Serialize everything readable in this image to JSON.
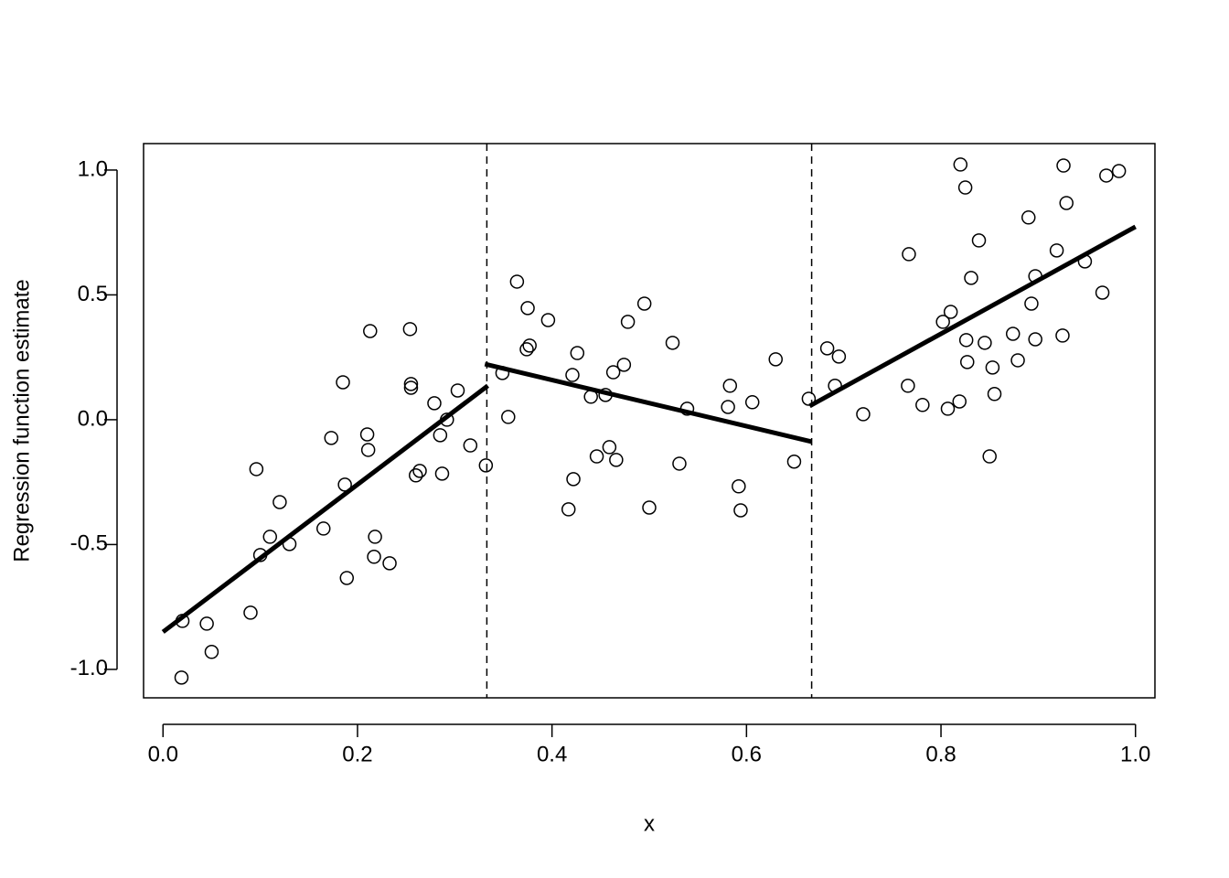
{
  "chart_data": {
    "type": "scatter",
    "xlabel": "x",
    "ylabel": "Regression function estimate",
    "xlim": [
      -0.02,
      1.02
    ],
    "ylim": [
      -1.114,
      1.106
    ],
    "xticks": [
      {
        "value": 0,
        "label": "0.0"
      },
      0.2,
      0.4,
      0.6,
      0.8,
      {
        "value": 1,
        "label": "1.0"
      }
    ],
    "yticks": [
      {
        "value": -1,
        "label": "-1.0"
      },
      -0.5,
      {
        "value": 0,
        "label": "0.0"
      },
      0.5,
      {
        "value": 1,
        "label": "1.0"
      }
    ],
    "color": "#000000",
    "vlines": [
      0.333,
      0.667
    ],
    "points": {
      "x": [
        0.02,
        0.019,
        0.045,
        0.05,
        0.09,
        0.096,
        0.1,
        0.11,
        0.12,
        0.13,
        0.165,
        0.173,
        0.185,
        0.187,
        0.189,
        0.21,
        0.211,
        0.213,
        0.217,
        0.218,
        0.233,
        0.254,
        0.255,
        0.255,
        0.26,
        0.264,
        0.279,
        0.285,
        0.287,
        0.292,
        0.303,
        0.316,
        0.332,
        0.349,
        0.355,
        0.364,
        0.374,
        0.375,
        0.377,
        0.396,
        0.417,
        0.421,
        0.422,
        0.426,
        0.44,
        0.446,
        0.455,
        0.459,
        0.463,
        0.466,
        0.474,
        0.478,
        0.495,
        0.5,
        0.524,
        0.531,
        0.539,
        0.581,
        0.583,
        0.592,
        0.594,
        0.606,
        0.63,
        0.649,
        0.664,
        0.683,
        0.691,
        0.695,
        0.72,
        0.766,
        0.767,
        0.781,
        0.802,
        0.807,
        0.81,
        0.819,
        0.82,
        0.825,
        0.826,
        0.827,
        0.831,
        0.839,
        0.845,
        0.85,
        0.853,
        0.855,
        0.874,
        0.879,
        0.89,
        0.893,
        0.897,
        0.897,
        0.919,
        0.925,
        0.926,
        0.929,
        0.948,
        0.966,
        0.97,
        0.983
      ],
      "values": [
        -0.806,
        -1.033,
        -0.817,
        -0.93,
        -0.773,
        -0.198,
        -0.542,
        -0.469,
        -0.33,
        -0.498,
        -0.436,
        -0.073,
        0.15,
        -0.26,
        -0.634,
        -0.059,
        -0.121,
        0.355,
        -0.549,
        -0.469,
        -0.575,
        0.363,
        0.143,
        0.128,
        -0.223,
        -0.205,
        0.066,
        -0.062,
        -0.216,
        0,
        0.117,
        -0.103,
        -0.183,
        0.187,
        0.011,
        0.553,
        0.282,
        0.447,
        0.297,
        0.399,
        -0.359,
        0.179,
        -0.238,
        0.267,
        0.092,
        -0.147,
        0.099,
        -0.11,
        0.19,
        -0.161,
        0.22,
        0.392,
        0.465,
        -0.352,
        0.308,
        -0.176,
        0.044,
        0.051,
        0.136,
        -0.267,
        -0.363,
        0.07,
        0.242,
        -0.168,
        0.084,
        0.286,
        0.136,
        0.253,
        0.022,
        0.136,
        0.663,
        0.059,
        0.392,
        0.044,
        0.432,
        0.073,
        1.022,
        0.93,
        0.319,
        0.231,
        0.568,
        0.718,
        0.308,
        -0.147,
        0.209,
        0.103,
        0.344,
        0.238,
        0.81,
        0.465,
        0.575,
        0.322,
        0.678,
        0.337,
        1.018,
        0.868,
        0.634,
        0.509,
        0.978,
        0.996
      ]
    },
    "fit_segments": [
      {
        "x": [
          0,
          0.334
        ],
        "values": [
          -0.85,
          0.136
        ]
      },
      {
        "x": [
          0.331,
          0.667
        ],
        "values": [
          0.223,
          -0.088
        ]
      },
      {
        "x": [
          0.665,
          1
        ],
        "values": [
          0.055,
          0.773
        ]
      }
    ]
  }
}
